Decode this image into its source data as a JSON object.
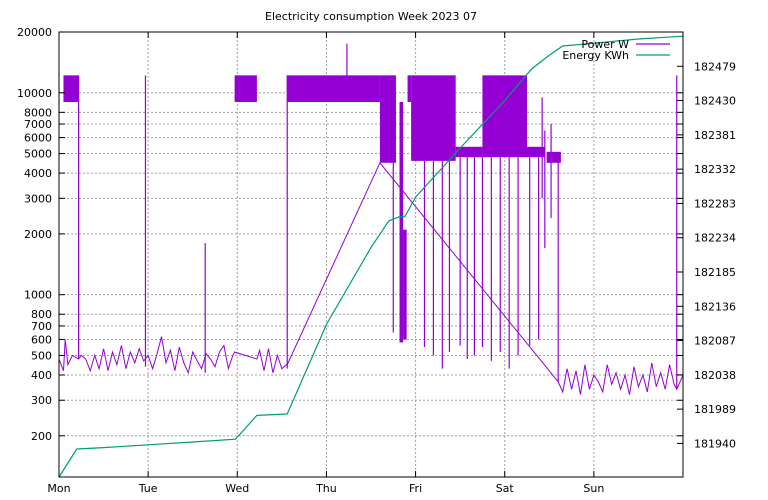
{
  "chart_data": {
    "type": "line",
    "title": "Electricity consumption Week 2023 07",
    "xlabel": "",
    "ylabel": "",
    "y2label": "",
    "x_categories": [
      "Mon",
      "Tue",
      "Wed",
      "Thu",
      "Fri",
      "Sat",
      "Sun"
    ],
    "x_range_days": [
      0,
      7
    ],
    "y_scale": "log",
    "ylim": [
      125,
      20000
    ],
    "y_ticks": [
      200,
      300,
      400,
      500,
      600,
      700,
      800,
      1000,
      2000,
      3000,
      4000,
      5000,
      6000,
      7000,
      8000,
      10000,
      20000
    ],
    "y2_scale": "linear",
    "y2lim": [
      181892,
      182528
    ],
    "y2_ticks": [
      181940,
      181989,
      182038,
      182087,
      182136,
      182185,
      182234,
      182283,
      182332,
      182381,
      182430,
      182479
    ],
    "grid": true,
    "legend_position": "top-right",
    "series": [
      {
        "name": "Power W",
        "axis": "y",
        "color": "#9400d3",
        "blocks": [
          {
            "x": [
              0.05,
              0.22
            ],
            "low": 9000,
            "high": 12200
          },
          {
            "x": [
              1.97,
              2.22
            ],
            "low": 9000,
            "high": 12200
          },
          {
            "x": [
              2.56,
              3.6
            ],
            "low": 9000,
            "high": 12200
          },
          {
            "x": [
              3.6,
              3.78
            ],
            "low": 4500,
            "high": 12200
          },
          {
            "x": [
              3.82,
              3.86
            ],
            "low": 580,
            "high": 9000
          },
          {
            "x": [
              3.86,
              3.9
            ],
            "low": 600,
            "high": 2100
          },
          {
            "x": [
              3.91,
              3.95
            ],
            "low": 9000,
            "high": 12200
          },
          {
            "x": [
              3.95,
              4.45
            ],
            "low": 4600,
            "high": 12200
          },
          {
            "x": [
              4.45,
              4.75
            ],
            "low": 4800,
            "high": 5400
          },
          {
            "x": [
              4.75,
              5.25
            ],
            "low": 4800,
            "high": 12200
          },
          {
            "x": [
              5.25,
              5.45
            ],
            "low": 4800,
            "high": 5400
          },
          {
            "x": [
              5.47,
              5.63
            ],
            "low": 4500,
            "high": 5100
          }
        ],
        "spikes": [
          {
            "x": 0.22,
            "low": 480,
            "high": 12200
          },
          {
            "x": 0.97,
            "low": 440,
            "high": 12200
          },
          {
            "x": 1.64,
            "low": 410,
            "high": 1800
          },
          {
            "x": 2.56,
            "low": 430,
            "high": 12200
          },
          {
            "x": 3.23,
            "low": 9000,
            "high": 17500
          },
          {
            "x": 3.75,
            "low": 650,
            "high": 4500
          },
          {
            "x": 4.1,
            "low": 550,
            "high": 4600
          },
          {
            "x": 4.2,
            "low": 500,
            "high": 4600
          },
          {
            "x": 4.3,
            "low": 430,
            "high": 4600
          },
          {
            "x": 4.38,
            "low": 520,
            "high": 4600
          },
          {
            "x": 4.5,
            "low": 560,
            "high": 4800
          },
          {
            "x": 4.58,
            "low": 480,
            "high": 4800
          },
          {
            "x": 4.66,
            "low": 500,
            "high": 4800
          },
          {
            "x": 4.75,
            "low": 550,
            "high": 4800
          },
          {
            "x": 4.85,
            "low": 470,
            "high": 4800
          },
          {
            "x": 4.95,
            "low": 520,
            "high": 4800
          },
          {
            "x": 5.05,
            "low": 430,
            "high": 4800
          },
          {
            "x": 5.15,
            "low": 500,
            "high": 4800
          },
          {
            "x": 5.28,
            "low": 560,
            "high": 4800
          },
          {
            "x": 5.38,
            "low": 600,
            "high": 4800
          },
          {
            "x": 5.42,
            "low": 3000,
            "high": 9500
          },
          {
            "x": 5.45,
            "low": 1700,
            "high": 6500
          },
          {
            "x": 5.52,
            "low": 2400,
            "high": 7000
          },
          {
            "x": 5.6,
            "low": 370,
            "high": 5100
          },
          {
            "x": 6.93,
            "low": 340,
            "high": 12200
          }
        ],
        "baseline": [
          [
            0.0,
            480
          ],
          [
            0.05,
            420
          ],
          [
            0.07,
            600
          ],
          [
            0.1,
            450
          ],
          [
            0.15,
            500
          ],
          [
            0.22,
            480
          ],
          [
            0.25,
            500
          ],
          [
            0.3,
            480
          ],
          [
            0.35,
            420
          ],
          [
            0.4,
            500
          ],
          [
            0.45,
            430
          ],
          [
            0.5,
            540
          ],
          [
            0.55,
            420
          ],
          [
            0.6,
            520
          ],
          [
            0.65,
            450
          ],
          [
            0.7,
            560
          ],
          [
            0.75,
            430
          ],
          [
            0.8,
            520
          ],
          [
            0.85,
            460
          ],
          [
            0.9,
            540
          ],
          [
            0.95,
            470
          ],
          [
            1.0,
            500
          ],
          [
            1.05,
            430
          ],
          [
            1.1,
            510
          ],
          [
            1.15,
            620
          ],
          [
            1.2,
            460
          ],
          [
            1.25,
            530
          ],
          [
            1.3,
            420
          ],
          [
            1.35,
            550
          ],
          [
            1.4,
            460
          ],
          [
            1.45,
            410
          ],
          [
            1.5,
            520
          ],
          [
            1.55,
            470
          ],
          [
            1.6,
            430
          ],
          [
            1.65,
            510
          ],
          [
            1.7,
            480
          ],
          [
            1.75,
            440
          ],
          [
            1.8,
            520
          ],
          [
            1.85,
            560
          ],
          [
            1.9,
            430
          ],
          [
            1.95,
            500
          ],
          [
            1.97,
            520
          ],
          [
            2.22,
            480
          ],
          [
            2.25,
            530
          ],
          [
            2.3,
            420
          ],
          [
            2.35,
            540
          ],
          [
            2.4,
            410
          ],
          [
            2.45,
            500
          ],
          [
            2.5,
            430
          ],
          [
            2.55,
            450
          ],
          [
            2.56,
            450
          ],
          [
            3.6,
            4500
          ],
          [
            5.6,
            370
          ],
          [
            5.65,
            330
          ],
          [
            5.7,
            430
          ],
          [
            5.75,
            340
          ],
          [
            5.8,
            420
          ],
          [
            5.85,
            320
          ],
          [
            5.9,
            450
          ],
          [
            5.95,
            340
          ],
          [
            6.0,
            400
          ],
          [
            6.05,
            370
          ],
          [
            6.1,
            330
          ],
          [
            6.15,
            450
          ],
          [
            6.2,
            360
          ],
          [
            6.25,
            410
          ],
          [
            6.3,
            340
          ],
          [
            6.35,
            400
          ],
          [
            6.4,
            320
          ],
          [
            6.45,
            440
          ],
          [
            6.5,
            350
          ],
          [
            6.55,
            400
          ],
          [
            6.6,
            330
          ],
          [
            6.65,
            460
          ],
          [
            6.7,
            350
          ],
          [
            6.75,
            410
          ],
          [
            6.8,
            340
          ],
          [
            6.85,
            450
          ],
          [
            6.9,
            360
          ],
          [
            6.93,
            340
          ],
          [
            7.0,
            400
          ]
        ]
      },
      {
        "name": "Energy KWh",
        "axis": "y2",
        "color": "#009e73",
        "x": [
          0.0,
          0.2,
          0.5,
          1.0,
          1.5,
          1.98,
          2.22,
          2.56,
          3.0,
          3.5,
          3.7,
          3.82,
          3.88,
          4.0,
          4.5,
          5.0,
          5.3,
          5.5,
          5.65,
          6.0,
          6.5,
          7.0
        ],
        "values": [
          181892,
          181932,
          181934,
          181938,
          181942,
          181946,
          181980,
          181982,
          182110,
          182220,
          182258,
          182264,
          182264,
          182292,
          182362,
          182430,
          182475,
          182495,
          182508,
          182512,
          182518,
          182522
        ]
      }
    ]
  }
}
